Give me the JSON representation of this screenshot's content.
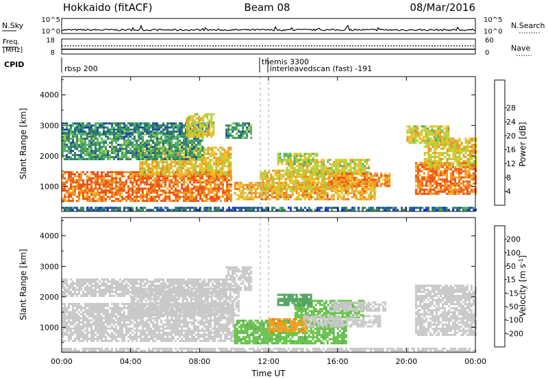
{
  "header": {
    "site": "Hokkaido (fitACF)",
    "beam": "Beam 08",
    "date": "08/Mar/2016"
  },
  "panels": {
    "nsky_label": "N.Sky",
    "nsearch_label": "N.Search",
    "nsky_ticks": [
      "10^5",
      "10^0"
    ],
    "freq_label_line1": "Freq.",
    "freq_label_line2": "[MHz]",
    "freq_ticks": [
      "18",
      "8"
    ],
    "nave_label": "Nave",
    "nave_ticks": [
      "60",
      "0"
    ],
    "cpid_label": "CPID",
    "cpid_entries": [
      {
        "text": "rbsp 200",
        "time_h": 0.0
      },
      {
        "text": "themis 3300",
        "time_h": 11.1
      },
      {
        "text": "interleavedscan (fast) -191",
        "time_h": 11.5
      }
    ]
  },
  "chart_data": [
    {
      "type": "heatmap",
      "name": "power",
      "xlabel": "",
      "ylabel": "Slant Range [km]",
      "xlim": [
        0,
        24
      ],
      "ylim": [
        180,
        4600
      ],
      "yticks": [
        1000,
        2000,
        3000,
        4000
      ],
      "colorbar": {
        "label": "Power [dB]",
        "ticks": [
          4,
          8,
          12,
          16,
          20,
          24,
          28
        ],
        "colors": [
          "#0020ff",
          "#1a4fa0",
          "#2f8060",
          "#50b060",
          "#a8d040",
          "#f0c020",
          "#f09020",
          "#f05010",
          "#ff0000"
        ]
      },
      "echo_regions": [
        {
          "t0": 0.0,
          "t1": 9.8,
          "r0": 550,
          "r1": 1500,
          "value": 28
        },
        {
          "t0": 4.5,
          "t1": 9.8,
          "r0": 1400,
          "r1": 2300,
          "value": 22
        },
        {
          "t0": 0.0,
          "t1": 8.2,
          "r0": 1900,
          "r1": 2800,
          "value": 12
        },
        {
          "t0": 0.0,
          "t1": 8.5,
          "r0": 2700,
          "r1": 3100,
          "value": 10
        },
        {
          "t0": 7.2,
          "t1": 8.8,
          "r0": 2600,
          "r1": 3400,
          "value": 20
        },
        {
          "t0": 9.5,
          "t1": 11.0,
          "r0": 2600,
          "r1": 3100,
          "value": 12
        },
        {
          "t0": 10.0,
          "t1": 18.2,
          "r0": 550,
          "r1": 1150,
          "value": 24
        },
        {
          "t0": 11.5,
          "t1": 16.8,
          "r0": 900,
          "r1": 1550,
          "value": 22
        },
        {
          "t0": 13.0,
          "t1": 17.8,
          "r0": 1400,
          "r1": 1900,
          "value": 20
        },
        {
          "t0": 15.5,
          "t1": 19.0,
          "r0": 1000,
          "r1": 1450,
          "value": 26
        },
        {
          "t0": 12.5,
          "t1": 14.8,
          "r0": 1700,
          "r1": 2100,
          "value": 18
        },
        {
          "t0": 20.5,
          "t1": 24.0,
          "r0": 750,
          "r1": 1800,
          "value": 28
        },
        {
          "t0": 21.0,
          "t1": 24.0,
          "r0": 1600,
          "r1": 2600,
          "value": 22
        },
        {
          "t0": 20.0,
          "t1": 22.5,
          "r0": 2400,
          "r1": 3000,
          "value": 20
        },
        {
          "t0": 0.0,
          "t1": 24.0,
          "r0": 200,
          "r1": 330,
          "value": 8
        }
      ]
    },
    {
      "type": "heatmap",
      "name": "velocity",
      "xlabel": "Time UT",
      "ylabel": "Slant Range [km]",
      "xlim": [
        0,
        24
      ],
      "ylim": [
        180,
        4600
      ],
      "xticks": [
        "00:00",
        "04:00",
        "08:00",
        "12:00",
        "16:00",
        "20:00",
        "00:00"
      ],
      "yticks": [
        1000,
        2000,
        3000,
        4000
      ],
      "colorbar": {
        "label": "Velocity [m s^-1]",
        "label_main": "Velocity [m s",
        "label_sup": "-1",
        "label_end": "]",
        "ticks": [
          200,
          100,
          50,
          15,
          -15,
          -50,
          -100,
          -200
        ],
        "colors": [
          "#1030c0",
          "#2f7050",
          "#50a060",
          "#60c040",
          "#c8c8c8",
          "#f0a020",
          "#f07010",
          "#f04010",
          "#ff0000"
        ]
      },
      "echo_regions": [
        {
          "t0": 0.0,
          "t1": 10.0,
          "r0": 550,
          "r1": 1800,
          "value": 0
        },
        {
          "t0": 4.0,
          "t1": 10.2,
          "r0": 1400,
          "r1": 2300,
          "value": 0
        },
        {
          "t0": 0.0,
          "t1": 9.5,
          "r0": 2000,
          "r1": 2600,
          "value": 0
        },
        {
          "t0": 9.5,
          "t1": 11.0,
          "r0": 2200,
          "r1": 3000,
          "value": 0
        },
        {
          "t0": 10.0,
          "t1": 16.5,
          "r0": 500,
          "r1": 1250,
          "value": 40
        },
        {
          "t0": 12.0,
          "t1": 14.2,
          "r0": 850,
          "r1": 1300,
          "value": -40
        },
        {
          "t0": 13.5,
          "t1": 17.5,
          "r0": 1350,
          "r1": 1900,
          "value": 40
        },
        {
          "t0": 14.0,
          "t1": 18.5,
          "r0": 1000,
          "r1": 1400,
          "value": 0
        },
        {
          "t0": 15.5,
          "t1": 18.8,
          "r0": 1550,
          "r1": 1850,
          "value": 0
        },
        {
          "t0": 12.5,
          "t1": 14.5,
          "r0": 1700,
          "r1": 2100,
          "value": 60
        },
        {
          "t0": 20.5,
          "t1": 24.0,
          "r0": 750,
          "r1": 2400,
          "value": 0
        },
        {
          "t0": 0.0,
          "t1": 24.0,
          "r0": 200,
          "r1": 330,
          "value": 0
        }
      ]
    }
  ]
}
